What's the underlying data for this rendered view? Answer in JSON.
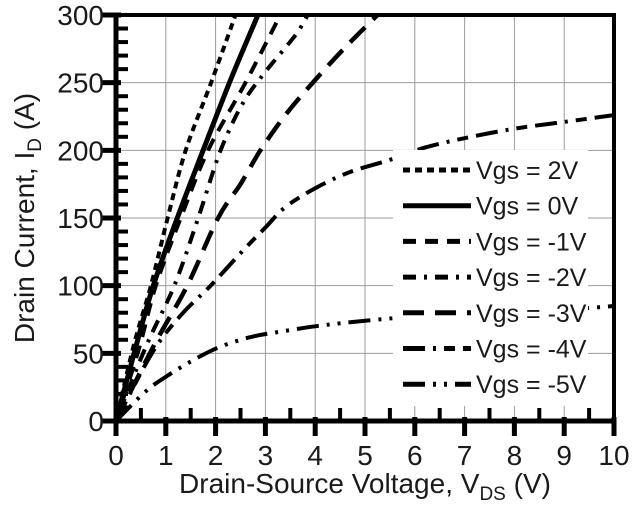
{
  "chart_data": {
    "type": "line",
    "title": "",
    "xlabel": "Drain-Source Voltage, VDS (V)",
    "xlabel_parts": {
      "main": "Drain-Source Voltage, V",
      "sub": "DS",
      "unit": " (V)"
    },
    "ylabel": "Drain Current, ID (A)",
    "ylabel_parts": {
      "main": "Drain Current, I",
      "sub": "D",
      "unit": " (A)"
    },
    "xlim": [
      0,
      10
    ],
    "ylim": [
      0,
      300
    ],
    "x_major_ticks": [
      0,
      1,
      2,
      3,
      4,
      5,
      6,
      7,
      8,
      9,
      10
    ],
    "x_minor_step": 0.5,
    "y_major_ticks": [
      0,
      50,
      100,
      150,
      200,
      250,
      300
    ],
    "y_minor_step": 10,
    "grid": true,
    "legend_position": "middle-right",
    "colors": {
      "curve": "#000000",
      "grid": "#9b9b9b",
      "text": "#1a1a1a",
      "axis": "#000000",
      "background": "#ffffff",
      "legend_background": "#ffffff"
    },
    "series": [
      {
        "name": "Vgs = 2V",
        "linestyle": "dense-dash",
        "points": [
          [
            0,
            0
          ],
          [
            0.35,
            55
          ],
          [
            0.7,
            100
          ],
          [
            1.05,
            152
          ],
          [
            1.4,
            200
          ],
          [
            1.92,
            251
          ],
          [
            2.4,
            300
          ]
        ]
      },
      {
        "name": "Vgs = 0V",
        "linestyle": "solid",
        "points": [
          [
            0,
            0
          ],
          [
            0.4,
            55
          ],
          [
            0.75,
            100
          ],
          [
            1.25,
            152
          ],
          [
            1.75,
            200
          ],
          [
            2.3,
            252
          ],
          [
            2.85,
            300
          ]
        ]
      },
      {
        "name": "Vgs = -1V",
        "linestyle": "dash",
        "points": [
          [
            0,
            0
          ],
          [
            0.45,
            52
          ],
          [
            0.8,
            100
          ],
          [
            1.3,
            150
          ],
          [
            1.85,
            200
          ],
          [
            2.6,
            250
          ],
          [
            3.3,
            300
          ]
        ]
      },
      {
        "name": "Vgs = -2V",
        "linestyle": "dash-dot",
        "points": [
          [
            0,
            0
          ],
          [
            0.6,
            55
          ],
          [
            1.17,
            100
          ],
          [
            1.65,
            150
          ],
          [
            2.1,
            200
          ],
          [
            2.55,
            235
          ],
          [
            3.0,
            258
          ],
          [
            3.6,
            285
          ],
          [
            3.85,
            300
          ]
        ]
      },
      {
        "name": "Vgs = -3V",
        "linestyle": "long-dash",
        "points": [
          [
            0,
            0
          ],
          [
            0.75,
            55
          ],
          [
            1.43,
            100
          ],
          [
            2.05,
            150
          ],
          [
            2.5,
            175
          ],
          [
            2.9,
            200
          ],
          [
            3.4,
            226
          ],
          [
            3.95,
            250
          ],
          [
            4.6,
            276
          ],
          [
            5.25,
            300
          ]
        ]
      },
      {
        "name": "Vgs = -4V",
        "linestyle": "long-dash-dot-dash",
        "points": [
          [
            0,
            0
          ],
          [
            0.72,
            50
          ],
          [
            1.3,
            78
          ],
          [
            1.9,
            100
          ],
          [
            2.5,
            124
          ],
          [
            3.0,
            143
          ],
          [
            3.4,
            158
          ],
          [
            4.0,
            172
          ],
          [
            4.7,
            184
          ],
          [
            5.5,
            193
          ],
          [
            6.2,
            202
          ],
          [
            7.0,
            209
          ],
          [
            8.0,
            216
          ],
          [
            9.0,
            221
          ],
          [
            10,
            226
          ]
        ]
      },
      {
        "name": "Vgs = -5V",
        "linestyle": "long-dash-dot-dot",
        "points": [
          [
            0,
            0
          ],
          [
            0.6,
            22
          ],
          [
            1.1,
            35
          ],
          [
            1.6,
            46
          ],
          [
            2.1,
            55
          ],
          [
            2.7,
            62
          ],
          [
            3.3,
            66
          ],
          [
            4.0,
            70
          ],
          [
            4.7,
            73
          ],
          [
            5.6,
            76
          ],
          [
            6.5,
            78
          ],
          [
            7.5,
            80
          ],
          [
            8.5,
            82
          ],
          [
            9.3,
            83
          ],
          [
            10,
            85
          ]
        ]
      }
    ]
  }
}
